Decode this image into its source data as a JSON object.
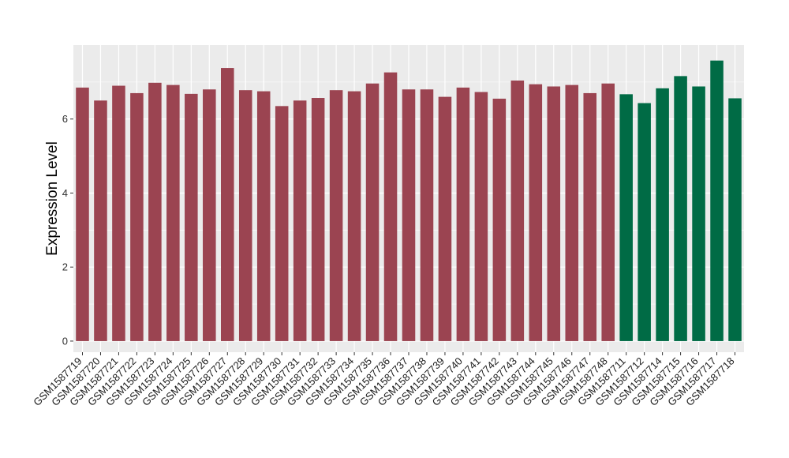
{
  "chart_data": {
    "type": "bar",
    "title": "",
    "xlabel": "",
    "ylabel": "Expression Level",
    "ylim": [
      -0.3,
      8.0
    ],
    "yticks": [
      0,
      2,
      4,
      6
    ],
    "grid": true,
    "legend": "none",
    "colors": {
      "group_1": "#9B4451",
      "group_2": "#006B45",
      "panel_background": "#EBEBEB",
      "gridline": "#FFFFFF"
    },
    "categories": [
      "GSM1587719",
      "GSM1587720",
      "GSM1587721",
      "GSM1587722",
      "GSM1587723",
      "GSM1587724",
      "GSM1587725",
      "GSM1587726",
      "GSM1587727",
      "GSM1587728",
      "GSM1587729",
      "GSM1587730",
      "GSM1587731",
      "GSM1587732",
      "GSM1587733",
      "GSM1587734",
      "GSM1587735",
      "GSM1587736",
      "GSM1587737",
      "GSM1587738",
      "GSM1587739",
      "GSM1587740",
      "GSM1587741",
      "GSM1587742",
      "GSM1587743",
      "GSM1587744",
      "GSM1587745",
      "GSM1587746",
      "GSM1587747",
      "GSM1587748",
      "GSM1587711",
      "GSM1587712",
      "GSM1587714",
      "GSM1587715",
      "GSM1587716",
      "GSM1587717",
      "GSM1587718"
    ],
    "values": [
      6.85,
      6.5,
      6.9,
      6.7,
      6.98,
      6.92,
      6.68,
      6.8,
      7.38,
      6.78,
      6.75,
      6.35,
      6.5,
      6.57,
      6.78,
      6.75,
      6.96,
      7.26,
      6.8,
      6.8,
      6.6,
      6.85,
      6.73,
      6.55,
      7.04,
      6.94,
      6.88,
      6.92,
      6.7,
      6.96,
      6.67,
      6.43,
      6.83,
      7.16,
      6.88,
      7.58,
      6.56
    ],
    "group": [
      1,
      1,
      1,
      1,
      1,
      1,
      1,
      1,
      1,
      1,
      1,
      1,
      1,
      1,
      1,
      1,
      1,
      1,
      1,
      1,
      1,
      1,
      1,
      1,
      1,
      1,
      1,
      1,
      1,
      1,
      2,
      2,
      2,
      2,
      2,
      2,
      2
    ]
  }
}
